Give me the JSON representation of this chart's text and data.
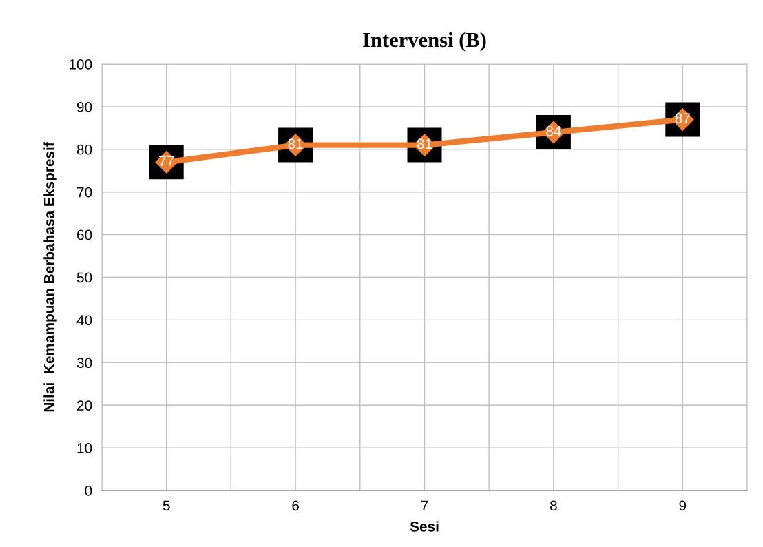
{
  "chart_data": {
    "type": "line",
    "title": "Intervensi (B)",
    "xlabel": "Sesi",
    "ylabel": "Nilai  Kemampuan Berbahasa Ekspresif",
    "categories": [
      "5",
      "6",
      "7",
      "8",
      "9"
    ],
    "series": [
      {
        "color": "#ed7d31",
        "values": [
          77,
          81,
          81,
          84,
          87
        ]
      }
    ],
    "ylim": [
      0,
      100
    ],
    "yticks": [
      0,
      10,
      20,
      30,
      40,
      50,
      60,
      70,
      80,
      90,
      100
    ],
    "grid": true,
    "marker": "diamond",
    "line_style": "solid",
    "data_labels": true
  }
}
